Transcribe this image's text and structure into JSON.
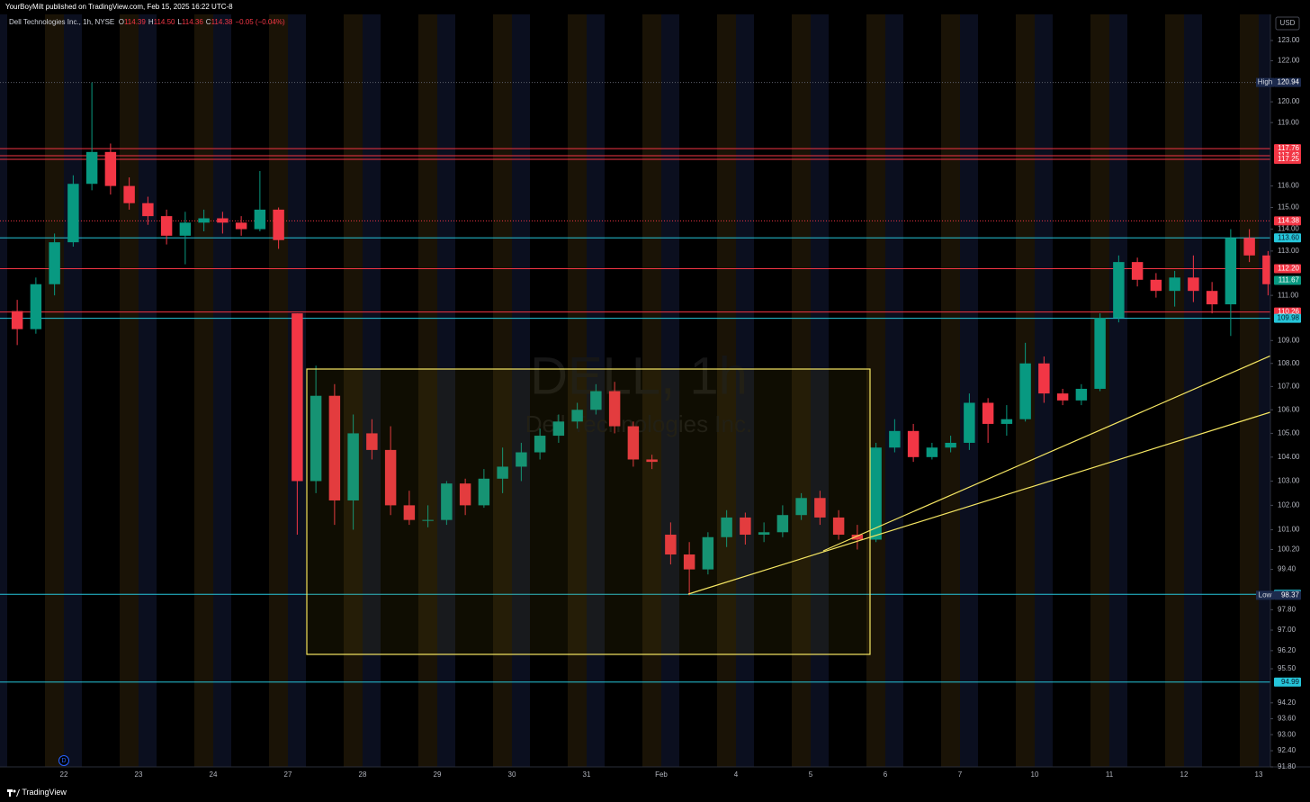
{
  "header": {
    "publisher": "YourBoyMilt published on TradingView.com, Feb 15, 2025 16:22 UTC-8",
    "currency": "USD",
    "footer": "TradingView",
    "event_badge": "D"
  },
  "chart_data": {
    "type": "candlestick",
    "symbol": "Dell Technologies Inc., 1h, NYSE",
    "watermark": "DELL, 1h",
    "watermark_name": "Dell Technologies Inc.",
    "ohlc_legend": [
      {
        "key": "O",
        "text": "114.39"
      },
      {
        "key": "H",
        "text": "114.50"
      },
      {
        "key": "L",
        "text": "114.36"
      },
      {
        "key": "C",
        "text": "114.38"
      }
    ],
    "change": "−0.05 (−0.04%)",
    "up_color": "#089981",
    "down_color": "#f23645",
    "log_scale": true,
    "grid": false,
    "days": [
      null,
      "22",
      "23",
      "24",
      "27",
      "28",
      "29",
      "30",
      "31",
      "Feb",
      "4",
      "5",
      "6",
      "7",
      "10",
      "11",
      "12",
      "13"
    ],
    "open": [
      null,
      110.3,
      109.5,
      111.5,
      113.4,
      116.1,
      117.6,
      116.0,
      115.2,
      114.6,
      113.7,
      114.3,
      114.5,
      114.3,
      114.0,
      114.9,
      110.2,
      103.0,
      106.6,
      102.2,
      105.0,
      104.3,
      102.0,
      101.4,
      101.4,
      102.9,
      102.0,
      103.1,
      103.6,
      104.2,
      104.9,
      105.5,
      106.0,
      106.8,
      105.3,
      103.9,
      100.8,
      100.0,
      99.4,
      100.7,
      101.5,
      100.8,
      100.9,
      101.6,
      102.3,
      101.5,
      100.8,
      100.6,
      104.4,
      105.1,
      104.0,
      104.4,
      104.6,
      106.3,
      105.4,
      105.6,
      108.0,
      106.7,
      106.4,
      106.9,
      110.0,
      112.5,
      111.7,
      111.2,
      111.8,
      111.2,
      110.6,
      113.6,
      112.8,
      null,
      null,
      null
    ],
    "high": [
      null,
      110.8,
      111.8,
      113.8,
      116.5,
      120.94,
      118.0,
      116.4,
      115.5,
      114.9,
      114.8,
      114.9,
      114.8,
      114.6,
      116.7,
      115.0,
      110.2,
      107.9,
      107.1,
      105.8,
      105.6,
      105.3,
      102.6,
      102.0,
      103.0,
      103.1,
      103.5,
      104.4,
      104.6,
      105.2,
      105.8,
      106.3,
      107.1,
      107.2,
      105.5,
      104.1,
      101.3,
      100.5,
      100.9,
      101.8,
      101.7,
      101.3,
      102.0,
      102.5,
      102.6,
      101.8,
      101.2,
      104.6,
      105.6,
      105.4,
      104.6,
      104.9,
      106.7,
      106.5,
      106.2,
      108.9,
      108.3,
      106.9,
      107.1,
      110.2,
      112.8,
      112.7,
      112.0,
      112.1,
      112.8,
      111.6,
      114.0,
      114.0,
      113.0,
      null,
      null,
      null
    ],
    "low": [
      null,
      108.8,
      109.3,
      111.0,
      113.2,
      115.8,
      115.6,
      114.9,
      114.2,
      113.3,
      112.4,
      113.9,
      113.8,
      113.7,
      113.9,
      113.1,
      100.8,
      102.5,
      101.2,
      101.0,
      103.9,
      101.6,
      101.2,
      101.1,
      101.2,
      101.6,
      101.9,
      102.5,
      103.0,
      103.9,
      104.6,
      105.2,
      105.8,
      105.0,
      103.6,
      103.5,
      99.6,
      98.37,
      99.2,
      100.3,
      100.4,
      100.5,
      100.7,
      101.4,
      101.2,
      100.6,
      100.2,
      100.5,
      104.2,
      103.8,
      103.9,
      104.2,
      104.3,
      104.6,
      104.9,
      105.5,
      106.3,
      106.2,
      106.2,
      106.8,
      109.8,
      111.4,
      110.9,
      110.5,
      110.7,
      110.2,
      109.2,
      112.5,
      111.0,
      null,
      null,
      null
    ],
    "close": [
      null,
      109.5,
      111.5,
      113.4,
      116.1,
      117.6,
      116.0,
      115.2,
      114.6,
      113.7,
      114.3,
      114.5,
      114.3,
      114.0,
      114.9,
      113.5,
      103.0,
      106.6,
      102.2,
      105.0,
      104.3,
      102.0,
      101.4,
      101.4,
      102.9,
      102.0,
      103.1,
      103.6,
      104.2,
      104.9,
      105.5,
      106.0,
      106.8,
      105.3,
      103.9,
      103.8,
      100.0,
      99.4,
      100.7,
      101.5,
      100.8,
      100.9,
      101.6,
      102.3,
      101.5,
      100.8,
      100.6,
      104.4,
      105.1,
      104.0,
      104.4,
      104.6,
      106.3,
      105.4,
      105.6,
      108.0,
      106.7,
      106.4,
      106.9,
      110.0,
      112.5,
      111.7,
      111.2,
      111.8,
      111.2,
      110.6,
      113.6,
      112.8,
      111.5,
      null,
      null,
      null
    ],
    "ylim": [
      91.8,
      124.3
    ],
    "yticks": [
      {
        "value": 123,
        "label": "123.00"
      },
      {
        "value": 122,
        "label": "122.00"
      },
      {
        "value": 120,
        "label": "120.00"
      },
      {
        "value": 119,
        "label": "119.00"
      },
      {
        "value": 116,
        "label": "116.00"
      },
      {
        "value": 115,
        "label": "115.00"
      },
      {
        "value": 114,
        "label": "114.00"
      },
      {
        "value": 113,
        "label": "113.00"
      },
      {
        "value": 111,
        "label": "111.00"
      },
      {
        "value": 109,
        "label": "109.00"
      },
      {
        "value": 108,
        "label": "108.00"
      },
      {
        "value": 107,
        "label": "107.00"
      },
      {
        "value": 106,
        "label": "106.00"
      },
      {
        "value": 105,
        "label": "105.00"
      },
      {
        "value": 104,
        "label": "104.00"
      },
      {
        "value": 103,
        "label": "103.00"
      },
      {
        "value": 102,
        "label": "102.00"
      },
      {
        "value": 101,
        "label": "101.00"
      },
      {
        "value": 100.2,
        "label": "100.20"
      },
      {
        "value": 99.4,
        "label": "99.40"
      },
      {
        "value": 97.8,
        "label": "97.80"
      },
      {
        "value": 97,
        "label": "97.00"
      },
      {
        "value": 96.2,
        "label": "96.20"
      },
      {
        "value": 95.5,
        "label": "95.50"
      },
      {
        "value": 94.2,
        "label": "94.20"
      },
      {
        "value": 93.6,
        "label": "93.60"
      },
      {
        "value": 93,
        "label": "93.00"
      },
      {
        "value": 92.4,
        "label": "92.40"
      },
      {
        "value": 91.8,
        "label": "91.80"
      }
    ],
    "price_lines": [
      {
        "price": 120.94,
        "color": "#5d606b",
        "style": "dotted",
        "tag": "High",
        "label_color": "#1c2a4d"
      },
      {
        "price": 117.76,
        "color": "#f23645",
        "style": "solid"
      },
      {
        "price": 117.42,
        "color": "#f23645",
        "style": "solid"
      },
      {
        "price": 117.25,
        "color": "#f23645",
        "style": "solid"
      },
      {
        "price": 114.38,
        "color": "#f23645",
        "style": "dotted"
      },
      {
        "price": {
          "value": 113.6,
          "label": "113.60"
        },
        "color": "#26c6da",
        "style": "solid"
      },
      {
        "price": {
          "value": 112.2,
          "label": "112.20"
        },
        "color": "#f23645",
        "style": "solid"
      },
      {
        "price": 111.67,
        "color": "#089981",
        "style": "none"
      },
      {
        "price": 110.26,
        "color": "#f23645",
        "style": "solid"
      },
      {
        "price": 109.98,
        "color": "#26c6da",
        "style": "solid"
      },
      {
        "price": 98.41,
        "color": "#26c6da",
        "style": "solid"
      },
      {
        "price": 98.37,
        "color": "#5d606b",
        "style": "none",
        "tag": "Low",
        "label_color": "#1c2a4d"
      },
      {
        "price": 94.99,
        "color": "#26c6da",
        "style": "solid"
      }
    ]
  }
}
